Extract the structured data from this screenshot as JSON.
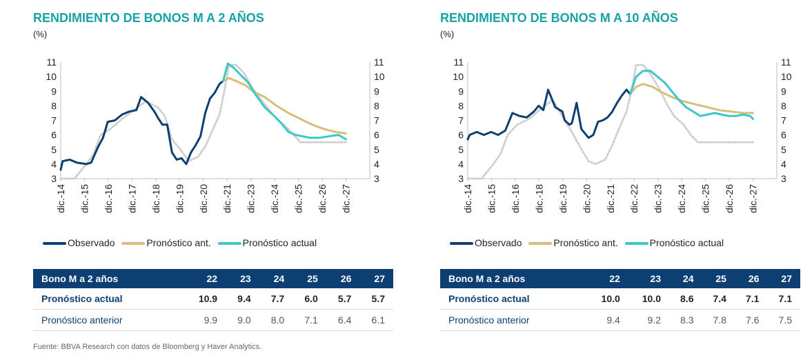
{
  "source": "Fuente: BBVA Research con datos de Bloomberg y Haver Analytics.",
  "colors": {
    "observed": "#0d3f73",
    "prev": "#d8bd7c",
    "actual": "#3cc8c6",
    "prev_dotted": "#cfcfcf",
    "header": "#0d3f73",
    "title": "#17a3a6"
  },
  "legend": {
    "observed": "Observado",
    "prev": "Pronóstico ant.",
    "actual": "Pronóstico actual"
  },
  "panels": [
    {
      "title": "RENDIMIENTO DE BONOS M A 2 AÑOS",
      "unit": "(%)",
      "table": {
        "header": [
          "Bono M a 2 años",
          "22",
          "23",
          "24",
          "25",
          "26",
          "27"
        ],
        "actual": {
          "label": "Pronóstico actual",
          "values": [
            "10.9",
            "9.4",
            "7.7",
            "6.0",
            "5.7",
            "5.7"
          ]
        },
        "prev": {
          "label": "Pronóstico anterior",
          "values": [
            "9.9",
            "9.0",
            "8.0",
            "7.1",
            "6.4",
            "6.1"
          ]
        }
      }
    },
    {
      "title": "RENDIMIENTO DE BONOS M A 10 AÑOS",
      "unit": "(%)",
      "table": {
        "header": [
          "Bono M a 2 años",
          "22",
          "23",
          "24",
          "25",
          "26",
          "27"
        ],
        "actual": {
          "label": "Pronóstico actual",
          "values": [
            "10.0",
            "10.0",
            "8.6",
            "7.4",
            "7.1",
            "7.1"
          ]
        },
        "prev": {
          "label": "Pronóstico anterior",
          "values": [
            "9.4",
            "9.2",
            "8.3",
            "7.8",
            "7.6",
            "7.5"
          ]
        }
      }
    }
  ],
  "chart_data": [
    {
      "type": "line",
      "title": "RENDIMIENTO DE BONOS M A 2 AÑOS",
      "ylabel": "(%)",
      "ylim": [
        3,
        11
      ],
      "yticks": [
        3,
        4,
        5,
        6,
        7,
        8,
        9,
        10,
        11
      ],
      "xlim": [
        2014.92,
        2027.92
      ],
      "xticks": [
        {
          "x": 2014.92,
          "label": "dic.-14"
        },
        {
          "x": 2015.92,
          "label": "dic.-15"
        },
        {
          "x": 2016.92,
          "label": "dic.-16"
        },
        {
          "x": 2017.92,
          "label": "dic.-17"
        },
        {
          "x": 2018.92,
          "label": "dic.-18"
        },
        {
          "x": 2019.92,
          "label": "dic.-19"
        },
        {
          "x": 2020.92,
          "label": "dic.-20"
        },
        {
          "x": 2021.92,
          "label": "dic.-21"
        },
        {
          "x": 2022.92,
          "label": "dic.-23"
        },
        {
          "x": 2023.92,
          "label": "dic.-24"
        },
        {
          "x": 2024.92,
          "label": "dic.-25"
        },
        {
          "x": 2025.92,
          "label": "dic.-26"
        },
        {
          "x": 2026.92,
          "label": "dic.-27"
        }
      ],
      "series": [
        {
          "name": "Observado",
          "style": "observed",
          "x": [
            2014.92,
            2015.0,
            2015.3,
            2015.6,
            2016.0,
            2016.2,
            2016.5,
            2016.7,
            2016.9,
            2017.2,
            2017.5,
            2017.8,
            2018.1,
            2018.3,
            2018.6,
            2018.9,
            2019.0,
            2019.2,
            2019.4,
            2019.6,
            2019.8,
            2020.0,
            2020.2,
            2020.4,
            2020.6,
            2020.8,
            2021.0,
            2021.2,
            2021.4,
            2021.6,
            2021.75
          ],
          "y": [
            3.6,
            4.2,
            4.3,
            4.1,
            4.0,
            4.1,
            5.2,
            5.8,
            6.9,
            7.0,
            7.4,
            7.6,
            7.7,
            8.6,
            8.2,
            7.5,
            7.2,
            6.7,
            6.7,
            4.8,
            4.3,
            4.4,
            4.0,
            4.8,
            5.3,
            5.9,
            7.5,
            8.5,
            8.9,
            9.5,
            9.7
          ]
        },
        {
          "name": "",
          "style": "prev_dotted",
          "x": [
            2014.92,
            2015.5,
            2016.0,
            2016.3,
            2016.6,
            2017.0,
            2017.5,
            2018.0,
            2018.5,
            2019.0,
            2019.3,
            2019.6,
            2020.0,
            2020.3,
            2020.7,
            2021.0,
            2021.3,
            2021.6,
            2021.8,
            2022.0,
            2022.3,
            2022.6,
            2023.0,
            2023.5,
            2024.0,
            2024.5,
            2025.0,
            2025.5,
            2026.0,
            2026.5,
            2026.92
          ],
          "y": [
            3.0,
            3.0,
            4.0,
            4.7,
            6.0,
            6.4,
            7.1,
            7.7,
            8.3,
            7.9,
            7.3,
            5.7,
            4.9,
            4.2,
            4.5,
            5.2,
            6.3,
            7.4,
            9.0,
            10.8,
            10.8,
            10.3,
            9.2,
            8.1,
            7.1,
            6.4,
            5.5,
            5.5,
            5.5,
            5.5,
            5.5
          ]
        },
        {
          "name": "Pronóstico ant.",
          "style": "prev",
          "x": [
            2021.75,
            2022.0,
            2022.3,
            2022.7,
            2023.0,
            2023.5,
            2024.0,
            2024.5,
            2025.0,
            2025.5,
            2026.0,
            2026.5,
            2026.92
          ],
          "y": [
            9.7,
            9.9,
            9.7,
            9.4,
            9.0,
            8.6,
            8.0,
            7.5,
            7.1,
            6.7,
            6.4,
            6.2,
            6.1
          ]
        },
        {
          "name": "Pronóstico actual",
          "style": "actual",
          "x": [
            2021.75,
            2021.95,
            2022.2,
            2022.5,
            2022.8,
            2023.1,
            2023.5,
            2023.9,
            2024.2,
            2024.5,
            2024.8,
            2025.1,
            2025.4,
            2025.8,
            2026.2,
            2026.6,
            2026.92
          ],
          "y": [
            9.7,
            10.9,
            10.6,
            10.1,
            9.6,
            8.8,
            7.9,
            7.3,
            6.8,
            6.2,
            6.0,
            5.9,
            5.8,
            5.8,
            5.9,
            6.0,
            5.7
          ]
        }
      ]
    },
    {
      "type": "line",
      "title": "RENDIMIENTO DE BONOS M A 10 AÑOS",
      "ylabel": "(%)",
      "ylim": [
        3,
        11
      ],
      "yticks": [
        3,
        4,
        5,
        6,
        7,
        8,
        9,
        10,
        11
      ],
      "xlim": [
        2014.92,
        2027.92
      ],
      "xticks": [
        {
          "x": 2014.92,
          "label": "dic.-14"
        },
        {
          "x": 2015.92,
          "label": "dic.-15"
        },
        {
          "x": 2016.92,
          "label": "dic.-16"
        },
        {
          "x": 2017.92,
          "label": "dic.-18"
        },
        {
          "x": 2018.92,
          "label": "dic.-19"
        },
        {
          "x": 2019.92,
          "label": "dic.-20"
        },
        {
          "x": 2020.92,
          "label": "dic.-21"
        },
        {
          "x": 2021.92,
          "label": "dic.-22"
        },
        {
          "x": 2022.92,
          "label": "dic.-23"
        },
        {
          "x": 2023.92,
          "label": "dic.-24"
        },
        {
          "x": 2024.92,
          "label": "dic.-25"
        },
        {
          "x": 2025.92,
          "label": "dic.-26"
        },
        {
          "x": 2026.92,
          "label": "dic.-27"
        }
      ],
      "series": [
        {
          "name": "Observado",
          "style": "observed",
          "x": [
            2014.92,
            2015.0,
            2015.3,
            2015.6,
            2015.9,
            2016.2,
            2016.5,
            2016.8,
            2017.1,
            2017.4,
            2017.7,
            2017.9,
            2018.1,
            2018.3,
            2018.6,
            2018.9,
            2019.0,
            2019.2,
            2019.3,
            2019.5,
            2019.7,
            2019.9,
            2020.0,
            2020.2,
            2020.4,
            2020.6,
            2020.8,
            2021.0,
            2021.2,
            2021.4,
            2021.6,
            2021.75
          ],
          "y": [
            5.7,
            6.0,
            6.2,
            6.0,
            6.2,
            6.0,
            6.3,
            7.5,
            7.3,
            7.2,
            7.6,
            8.0,
            7.7,
            9.1,
            7.9,
            7.6,
            7.0,
            6.7,
            6.8,
            8.2,
            6.4,
            6.0,
            5.8,
            6.0,
            6.9,
            7.0,
            7.2,
            7.6,
            8.2,
            8.7,
            9.1,
            8.8
          ]
        },
        {
          "name": "",
          "style": "prev_dotted",
          "x": [
            2014.92,
            2015.5,
            2016.0,
            2016.3,
            2016.6,
            2017.0,
            2017.5,
            2018.0,
            2018.5,
            2019.0,
            2019.3,
            2019.6,
            2020.0,
            2020.3,
            2020.7,
            2021.0,
            2021.3,
            2021.6,
            2021.8,
            2022.0,
            2022.3,
            2022.6,
            2023.0,
            2023.3,
            2023.6,
            2024.0,
            2024.3,
            2024.6,
            2025.0,
            2025.5,
            2026.0,
            2026.5,
            2026.92
          ],
          "y": [
            3.0,
            3.0,
            4.0,
            4.7,
            6.0,
            6.7,
            7.1,
            7.8,
            8.4,
            7.0,
            6.2,
            5.3,
            4.2,
            4.0,
            4.3,
            5.3,
            6.5,
            7.6,
            9.0,
            10.8,
            10.8,
            10.2,
            9.1,
            8.1,
            7.3,
            6.7,
            6.0,
            5.5,
            5.5,
            5.5,
            5.5,
            5.5,
            5.5
          ]
        },
        {
          "name": "Pronóstico ant.",
          "style": "prev",
          "x": [
            2021.75,
            2022.0,
            2022.3,
            2022.7,
            2023.0,
            2023.5,
            2024.0,
            2024.5,
            2025.0,
            2025.5,
            2026.0,
            2026.5,
            2026.92
          ],
          "y": [
            8.8,
            9.3,
            9.5,
            9.3,
            9.0,
            8.6,
            8.3,
            8.1,
            7.9,
            7.7,
            7.6,
            7.5,
            7.5
          ]
        },
        {
          "name": "Pronóstico actual",
          "style": "actual",
          "x": [
            2021.75,
            2022.0,
            2022.3,
            2022.6,
            2022.9,
            2023.2,
            2023.5,
            2023.8,
            2024.1,
            2024.4,
            2024.7,
            2025.0,
            2025.3,
            2025.6,
            2025.9,
            2026.2,
            2026.5,
            2026.8,
            2026.92
          ],
          "y": [
            8.8,
            10.0,
            10.4,
            10.4,
            10.0,
            9.6,
            9.0,
            8.4,
            7.9,
            7.6,
            7.3,
            7.4,
            7.5,
            7.4,
            7.3,
            7.3,
            7.4,
            7.3,
            7.1
          ]
        }
      ]
    }
  ]
}
